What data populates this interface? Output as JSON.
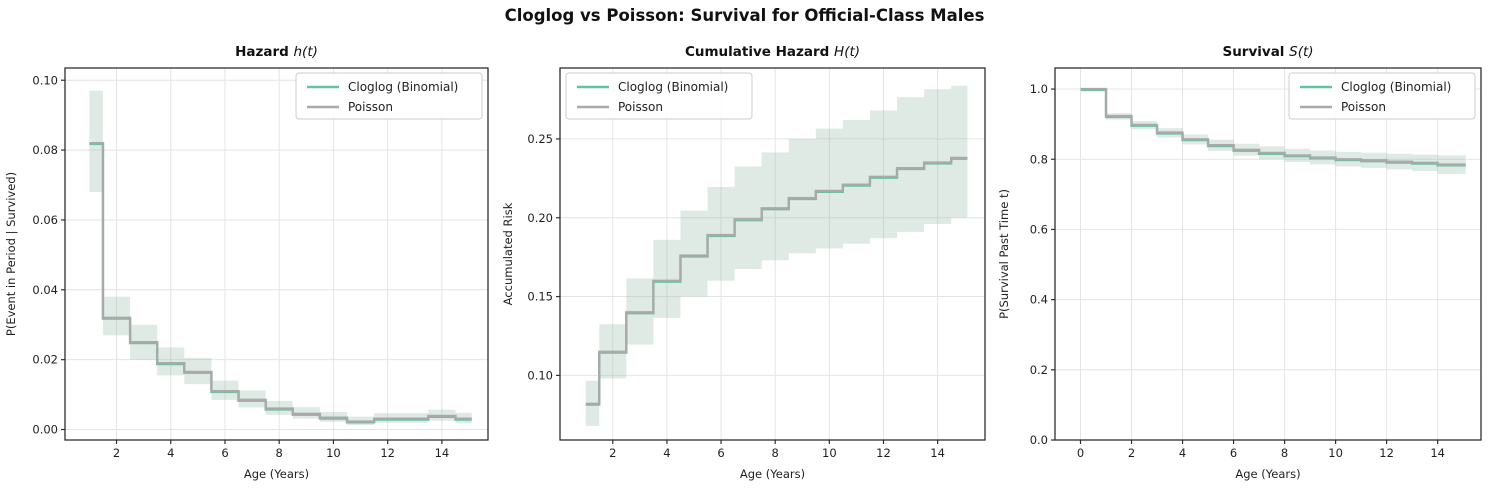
{
  "figure_title": "Cloglog vs Poisson: Survival for Official-Class Males",
  "colors": {
    "cloglog": "#66c2a5",
    "poisson": "#a9a9a9",
    "band": "rgba(141,177,160,0.27)",
    "grid": "#e4e4e4",
    "spine": "#2e2e2e",
    "text": "#1f1f1f"
  },
  "chart_data": [
    {
      "type": "line",
      "subtype": "step-post",
      "title_bold": "Hazard",
      "title_math": "h(t)",
      "xlabel": "Age (Years)",
      "ylabel": "P(Event in Period | Survived)",
      "xlim": [
        0.1,
        15.7
      ],
      "ylim": [
        -0.003,
        0.1035
      ],
      "xtick_vals": [
        2,
        4,
        6,
        8,
        10,
        12,
        14
      ],
      "xtick_labels": [
        "2",
        "4",
        "6",
        "8",
        "10",
        "12",
        "14"
      ],
      "ytick_vals": [
        0.0,
        0.02,
        0.04,
        0.06,
        0.08,
        0.1
      ],
      "ytick_labels": [
        "0.00",
        "0.02",
        "0.04",
        "0.06",
        "0.08",
        "0.10"
      ],
      "grid": true,
      "legend_loc": "upper-right",
      "edges": [
        1,
        1.5,
        2.5,
        3.5,
        4.5,
        5.5,
        6.5,
        7.5,
        8.5,
        9.5,
        10.5,
        11.5,
        12.5,
        13.5,
        14.5,
        15.1
      ],
      "series": [
        {
          "name": "Cloglog (Binomial)",
          "color": "#66c2a5",
          "values": [
            0.082,
            0.032,
            0.025,
            0.019,
            0.0165,
            0.011,
            0.0085,
            0.006,
            0.0045,
            0.0034,
            0.0023,
            0.0031,
            0.0031,
            0.0039,
            0.0031
          ]
        },
        {
          "name": "Poisson",
          "color": "#a9a9a9",
          "values": [
            0.082,
            0.032,
            0.025,
            0.019,
            0.0165,
            0.011,
            0.0085,
            0.006,
            0.0045,
            0.0034,
            0.0023,
            0.0031,
            0.0031,
            0.0039,
            0.0031
          ]
        }
      ],
      "band_lower": [
        0.068,
        0.027,
        0.02,
        0.0155,
        0.013,
        0.0085,
        0.0063,
        0.0042,
        0.0031,
        0.0022,
        0.0013,
        0.0019,
        0.0019,
        0.0025,
        0.0018
      ],
      "band_upper": [
        0.097,
        0.038,
        0.03,
        0.0235,
        0.0205,
        0.014,
        0.0112,
        0.0082,
        0.0064,
        0.005,
        0.0037,
        0.0047,
        0.0047,
        0.0057,
        0.0048
      ]
    },
    {
      "type": "line",
      "subtype": "step-post",
      "title_bold": "Cumulative Hazard",
      "title_math": "H(t)",
      "xlabel": "Age (Years)",
      "ylabel": "Accumulated Risk",
      "xlim": [
        0.05,
        15.75
      ],
      "ylim": [
        0.059,
        0.295
      ],
      "xtick_vals": [
        2,
        4,
        6,
        8,
        10,
        12,
        14
      ],
      "xtick_labels": [
        "2",
        "4",
        "6",
        "8",
        "10",
        "12",
        "14"
      ],
      "ytick_vals": [
        0.1,
        0.15,
        0.2,
        0.25
      ],
      "ytick_labels": [
        "0.10",
        "0.15",
        "0.20",
        "0.25"
      ],
      "grid": true,
      "legend_loc": "upper-left",
      "edges": [
        1,
        1.5,
        2.5,
        3.5,
        4.5,
        5.5,
        6.5,
        7.5,
        8.5,
        9.5,
        10.5,
        11.5,
        12.5,
        13.5,
        14.5,
        15.1
      ],
      "series": [
        {
          "name": "Cloglog (Binomial)",
          "color": "#66c2a5",
          "values": [
            0.082,
            0.115,
            0.14,
            0.16,
            0.176,
            0.189,
            0.199,
            0.206,
            0.2125,
            0.217,
            0.221,
            0.226,
            0.2315,
            0.235,
            0.238
          ]
        },
        {
          "name": "Poisson",
          "color": "#a9a9a9",
          "values": [
            0.082,
            0.115,
            0.14,
            0.16,
            0.176,
            0.189,
            0.199,
            0.206,
            0.2125,
            0.217,
            0.221,
            0.226,
            0.2315,
            0.235,
            0.238
          ]
        }
      ],
      "band_lower": [
        0.068,
        0.098,
        0.1195,
        0.1365,
        0.15,
        0.16,
        0.1675,
        0.173,
        0.1775,
        0.1805,
        0.1835,
        0.187,
        0.191,
        0.196,
        0.2
      ],
      "band_upper": [
        0.0965,
        0.1325,
        0.1615,
        0.186,
        0.2045,
        0.2195,
        0.2325,
        0.2415,
        0.25,
        0.2565,
        0.262,
        0.268,
        0.2765,
        0.2816,
        0.2837
      ]
    },
    {
      "type": "line",
      "subtype": "step-post",
      "title_bold": "Survival",
      "title_math": "S(t)",
      "xlabel": "Age (Years)",
      "ylabel": "P(Survival Past Time t)",
      "xlim": [
        -1.0,
        15.7
      ],
      "ylim": [
        0,
        1.06
      ],
      "xtick_vals": [
        0,
        2,
        4,
        6,
        8,
        10,
        12,
        14
      ],
      "xtick_labels": [
        "0",
        "2",
        "4",
        "6",
        "8",
        "10",
        "12",
        "14"
      ],
      "ytick_vals": [
        0.0,
        0.2,
        0.4,
        0.6,
        0.8,
        1.0
      ],
      "ytick_labels": [
        "0.0",
        "0.2",
        "0.4",
        "0.6",
        "0.8",
        "1.0"
      ],
      "grid": true,
      "legend_loc": "upper-right",
      "edges": [
        0,
        1,
        2,
        3,
        4,
        5,
        6,
        7,
        8,
        9,
        10,
        11,
        12,
        13,
        14,
        15.1
      ],
      "series": [
        {
          "name": "Cloglog (Binomial)",
          "color": "#66c2a5",
          "values": [
            1.0,
            0.923,
            0.898,
            0.876,
            0.857,
            0.84,
            0.827,
            0.818,
            0.811,
            0.805,
            0.8,
            0.797,
            0.793,
            0.79,
            0.785
          ]
        },
        {
          "name": "Poisson",
          "color": "#a9a9a9",
          "values": [
            1.0,
            0.923,
            0.898,
            0.876,
            0.857,
            0.84,
            0.827,
            0.818,
            0.811,
            0.805,
            0.8,
            0.797,
            0.793,
            0.79,
            0.785
          ]
        }
      ],
      "band_lower": [
        1.0,
        0.913,
        0.886,
        0.862,
        0.842,
        0.824,
        0.81,
        0.8,
        0.792,
        0.785,
        0.779,
        0.7755,
        0.771,
        0.7665,
        0.7575
      ],
      "band_upper": [
        1.0,
        0.9315,
        0.9085,
        0.8885,
        0.871,
        0.856,
        0.844,
        0.8365,
        0.83,
        0.825,
        0.821,
        0.8185,
        0.8155,
        0.8135,
        0.8115
      ]
    }
  ]
}
